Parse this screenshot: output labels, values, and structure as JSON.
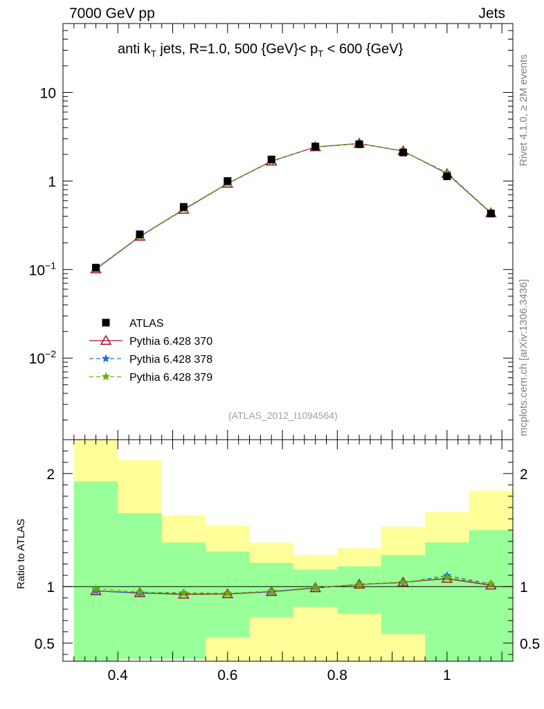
{
  "header": {
    "left": "7000 GeV pp",
    "right": "Jets"
  },
  "title_parts": {
    "pre": "anti k",
    "sub1": "T",
    "mid": " jets, R=1.0,  500 {GeV}< p",
    "sub2": "T",
    "post": " < 600 {GeV}"
  },
  "reference_tag": "(ATLAS_2012_I1094564)",
  "side_top": "Rivet 4.1.0, ≥ 2M events",
  "side_bottom": "mcplots.cern.ch [arXiv:1306.3436]",
  "ratio_ylabel": "Ratio to ATLAS",
  "colors": {
    "atlas": "#000000",
    "p370": "#a0102a",
    "p378": "#1f6fe0",
    "p379": "#66b000",
    "band_inner": "#99ff99",
    "band_outer": "#ffff99"
  },
  "chart_data": {
    "type": "line",
    "main": {
      "yscale": "log",
      "ylim": [
        0.0012,
        60
      ],
      "yticks": [
        {
          "v": 0.01,
          "mant": "10",
          "exp": "−2"
        },
        {
          "v": 0.1,
          "mant": "10",
          "exp": "−1"
        },
        {
          "v": 1,
          "mant": "1",
          "exp": ""
        },
        {
          "v": 10,
          "mant": "10",
          "exp": ""
        }
      ],
      "legend": [
        "ATLAS",
        "Pythia 6.428 370",
        "Pythia 6.428 378",
        "Pythia 6.428 379"
      ],
      "legend_position": "middle-left"
    },
    "ratio": {
      "ylim": [
        0.34,
        2.3
      ],
      "yticks": [
        0.5,
        1,
        2
      ],
      "ytick_labels": [
        "0.5",
        "1",
        "2"
      ]
    },
    "xlim": [
      0.3,
      1.12
    ],
    "xticks": [
      0.4,
      0.6,
      0.8,
      1
    ],
    "xtick_labels": [
      "0.4",
      "0.6",
      "0.8",
      "1"
    ],
    "bins": [
      {
        "lo": 0.32,
        "hi": 0.4,
        "x": 0.36,
        "atlas": 0.105,
        "inner": [
          0.3,
          1.93
        ],
        "outer": [
          0.3,
          2.6
        ]
      },
      {
        "lo": 0.4,
        "hi": 0.48,
        "x": 0.44,
        "atlas": 0.25,
        "inner": [
          0.36,
          1.65
        ],
        "outer": [
          0.36,
          2.12
        ]
      },
      {
        "lo": 0.48,
        "hi": 0.56,
        "x": 0.52,
        "atlas": 0.51,
        "inner": [
          0.36,
          1.39
        ],
        "outer": [
          0.36,
          1.63
        ]
      },
      {
        "lo": 0.56,
        "hi": 0.64,
        "x": 0.6,
        "atlas": 1.0,
        "inner": [
          0.55,
          1.31
        ],
        "outer": [
          0.3,
          1.54
        ]
      },
      {
        "lo": 0.64,
        "hi": 0.72,
        "x": 0.68,
        "atlas": 1.75,
        "inner": [
          0.73,
          1.21
        ],
        "outer": [
          0.3,
          1.39
        ]
      },
      {
        "lo": 0.72,
        "hi": 0.8,
        "x": 0.76,
        "atlas": 2.45,
        "inner": [
          0.82,
          1.15
        ],
        "outer": [
          0.3,
          1.28
        ]
      },
      {
        "lo": 0.8,
        "hi": 0.88,
        "x": 0.84,
        "atlas": 2.6,
        "inner": [
          0.76,
          1.18
        ],
        "outer": [
          0.3,
          1.34
        ]
      },
      {
        "lo": 0.88,
        "hi": 0.96,
        "x": 0.92,
        "atlas": 2.1,
        "inner": [
          0.58,
          1.28
        ],
        "outer": [
          0.3,
          1.53
        ]
      },
      {
        "lo": 0.96,
        "hi": 1.04,
        "x": 1.0,
        "atlas": 1.13,
        "inner": [
          0.3,
          1.39
        ],
        "outer": [
          0.3,
          1.66
        ]
      },
      {
        "lo": 1.04,
        "hi": 1.12,
        "x": 1.08,
        "atlas": 0.43,
        "inner": [
          0.3,
          1.5
        ],
        "outer": [
          0.3,
          1.85
        ]
      }
    ],
    "series": [
      {
        "name": "Pythia 6.428 370",
        "color": "#a0102a",
        "dash": "",
        "marker": "triangle",
        "values": [
          0.101,
          0.236,
          0.475,
          0.935,
          1.67,
          2.42,
          2.65,
          2.18,
          1.21,
          0.435
        ]
      },
      {
        "name": "Pythia 6.428 378",
        "color": "#1f6fe0",
        "dash": "6,4",
        "marker": "star",
        "values": [
          0.101,
          0.235,
          0.48,
          0.94,
          1.67,
          2.42,
          2.65,
          2.17,
          1.24,
          0.44
        ]
      },
      {
        "name": "Pythia 6.428 379",
        "color": "#66b000",
        "dash": "6,4",
        "marker": "star",
        "values": [
          0.103,
          0.238,
          0.482,
          0.94,
          1.68,
          2.43,
          2.65,
          2.18,
          1.22,
          0.44
        ]
      }
    ]
  }
}
